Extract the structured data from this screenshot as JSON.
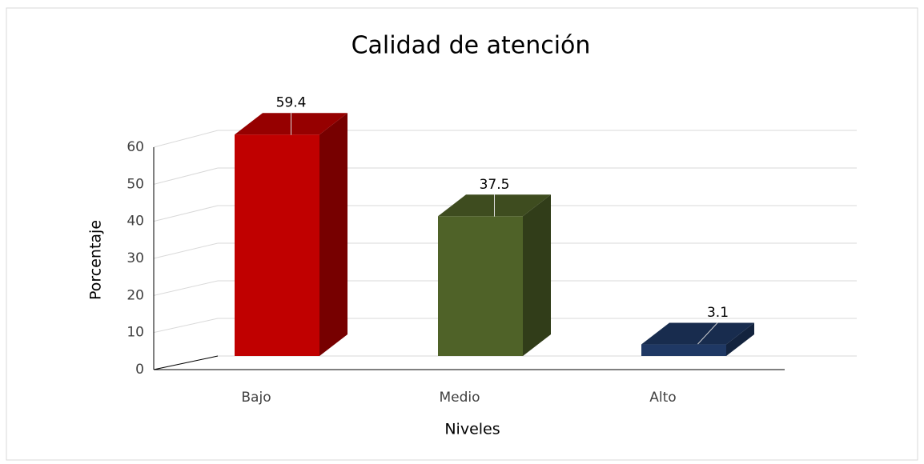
{
  "chart_data": {
    "type": "bar3d",
    "title": "Calidad de atención",
    "x_label": "Niveles",
    "y_label": "Porcentaje",
    "categories": [
      "Bajo",
      "Medio",
      "Alto"
    ],
    "values": [
      59.4,
      37.5,
      3.1
    ],
    "colors": [
      "#c00000",
      "#4f6228",
      "#1f3864"
    ],
    "ylim": [
      0,
      60
    ],
    "yticks": [
      0,
      10,
      20,
      30,
      40,
      50,
      60
    ],
    "grid": true
  }
}
